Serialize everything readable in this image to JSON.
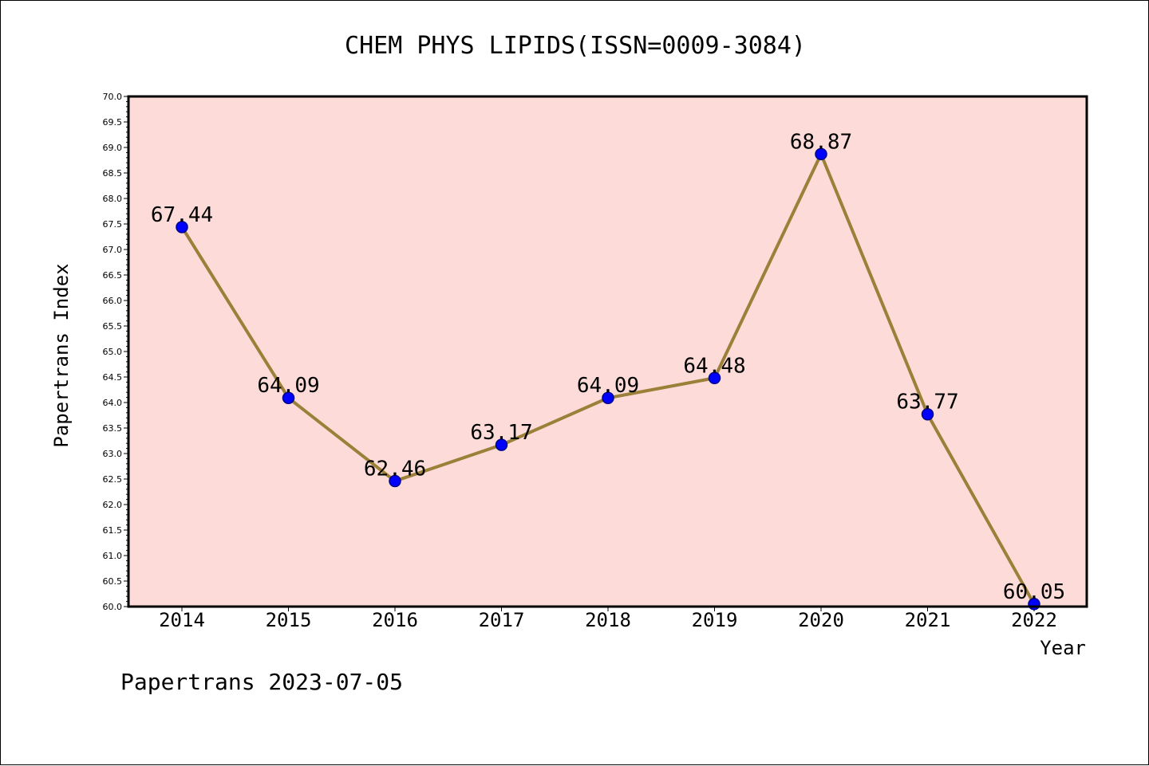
{
  "footer": "Papertrans 2023-07-05",
  "colors": {
    "plot_background": "#fddbd8",
    "line": "#9a8038",
    "marker": "#0000ff",
    "marker_edge": "#00008b"
  },
  "chart_data": {
    "type": "line",
    "title": "CHEM PHYS LIPIDS(ISSN=0009-3084)",
    "xlabel": "Year",
    "ylabel": "Papertrans Index",
    "categories": [
      "2014",
      "2015",
      "2016",
      "2017",
      "2018",
      "2019",
      "2020",
      "2021",
      "2022"
    ],
    "values": [
      67.44,
      64.09,
      62.46,
      63.17,
      64.09,
      64.48,
      68.87,
      63.77,
      60.05
    ],
    "data_labels": [
      "67.44",
      "64.09",
      "62.46",
      "63.17",
      "64.09",
      "64.48",
      "68.87",
      "63.77",
      "60.05"
    ],
    "ylim": [
      60.0,
      70.0
    ],
    "yticks": [
      "60.0",
      "60.5",
      "61.0",
      "61.5",
      "62.0",
      "62.5",
      "63.0",
      "63.5",
      "64.0",
      "64.5",
      "65.0",
      "65.5",
      "66.0",
      "66.5",
      "67.0",
      "67.5",
      "68.0",
      "68.5",
      "69.0",
      "69.5",
      "70.0"
    ],
    "grid": false,
    "legend": "none"
  }
}
